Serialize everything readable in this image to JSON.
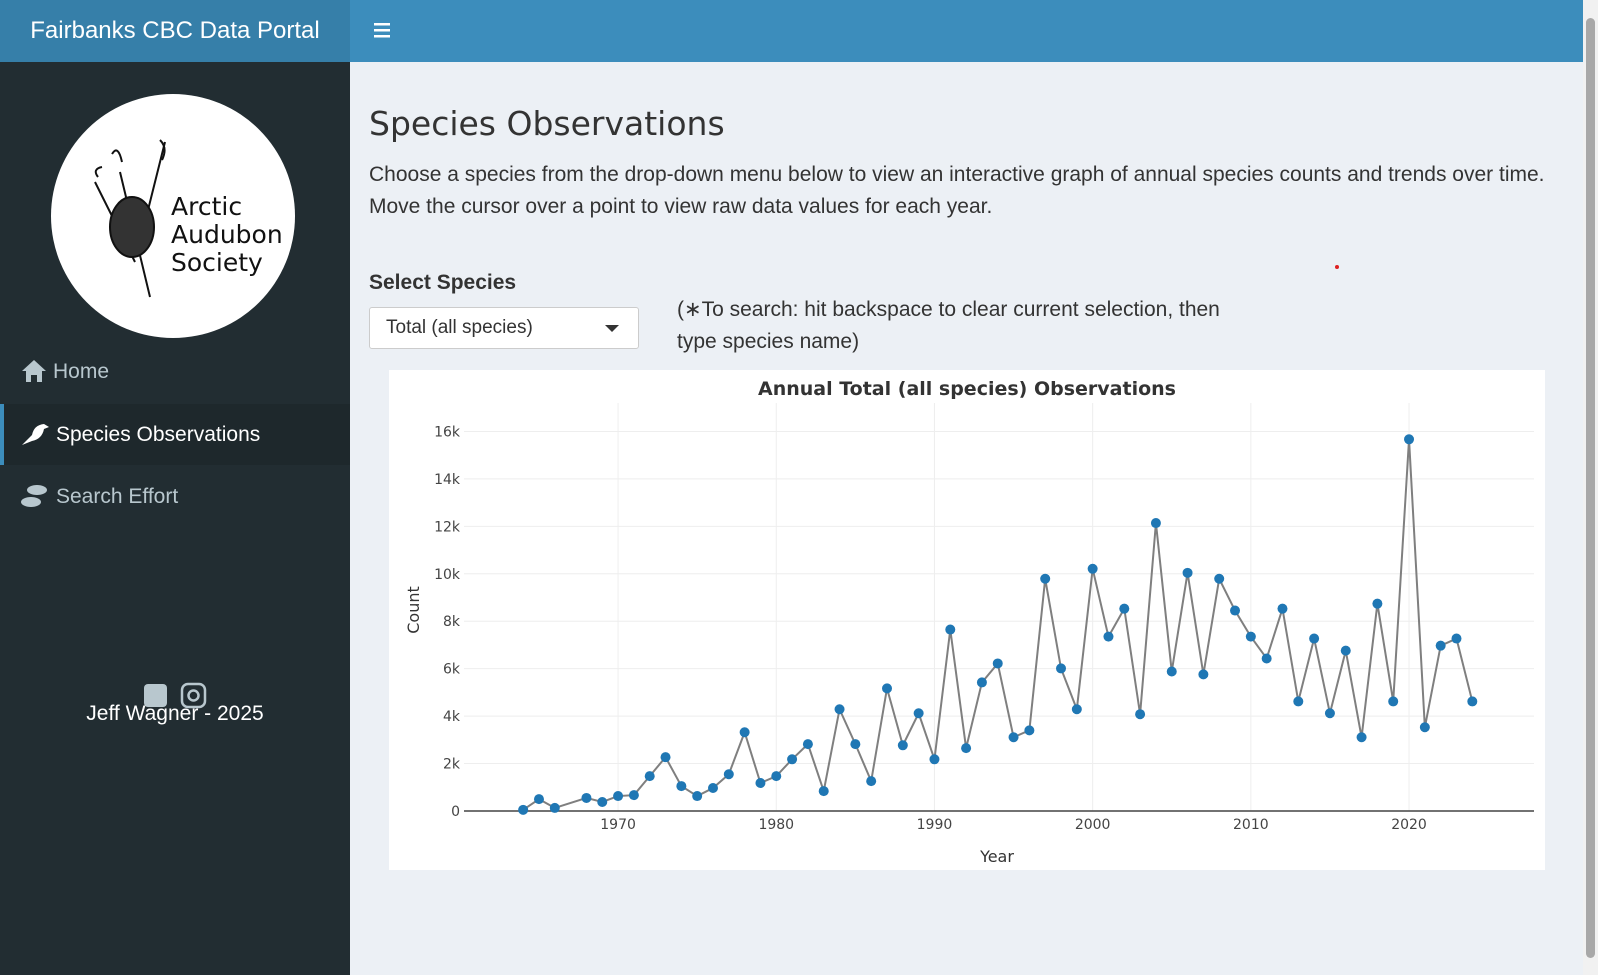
{
  "header": {
    "brand": "Fairbanks CBC Data Portal"
  },
  "sidebar": {
    "logo_text": [
      "Arctic",
      "Audubon",
      "Society"
    ],
    "nav": [
      "Home",
      "Species Observations",
      "Search Effort"
    ],
    "footer": "Jeff Wagner - 2025"
  },
  "main": {
    "title": "Species Observations",
    "description": "Choose a species from the drop-down menu below to view an interactive graph of annual species counts and trends over time. Move the cursor over a point to view raw data values for each year.",
    "select_label": "Select Species",
    "select_value": "Total (all species)",
    "search_hint": "(∗To search: hit backspace to clear current selection, then type species name)"
  },
  "chart_data": {
    "type": "line",
    "title": "Annual Total (all species) Observations",
    "x_label": "Year",
    "y_label": "Count",
    "x": [
      1964,
      1965,
      1966,
      1968,
      1969,
      1970,
      1971,
      1972,
      1973,
      1974,
      1975,
      1976,
      1977,
      1978,
      1979,
      1980,
      1981,
      1982,
      1983,
      1984,
      1985,
      1986,
      1987,
      1988,
      1989,
      1990,
      1991,
      1992,
      1993,
      1994,
      1995,
      1996,
      1997,
      1998,
      1999,
      2000,
      2001,
      2002,
      2003,
      2004,
      2005,
      2006,
      2007,
      2008,
      2009,
      2010,
      2011,
      2012,
      2013,
      2014,
      2015,
      2016,
      2017,
      2018,
      2019,
      2020,
      2021,
      2022,
      2023,
      2024
    ],
    "values": [
      50,
      500,
      130,
      550,
      380,
      630,
      670,
      1470,
      2270,
      1050,
      630,
      970,
      1550,
      3320,
      1180,
      1470,
      2180,
      2820,
      840,
      4290,
      2820,
      1260,
      5170,
      2770,
      4120,
      2180,
      7650,
      2650,
      5420,
      6220,
      3110,
      3400,
      9790,
      6010,
      4290,
      10210,
      7350,
      8530,
      4080,
      12140,
      5880,
      10040,
      5760,
      9790,
      8450,
      7350,
      6430,
      8530,
      4620,
      7270,
      4120,
      6760,
      3110,
      8740,
      4620,
      15670,
      3530,
      6970,
      7270,
      4620
    ],
    "color": "#1f77b4",
    "line_color": "#7f7f7f",
    "xlim": [
      1960.26,
      2027.9
    ],
    "ylim": [
      0,
      17200
    ],
    "xticks": [
      1970,
      1980,
      1990,
      2000,
      2010,
      2020
    ],
    "yticks": [
      0,
      {
        "value": 2000,
        "label": "2k"
      },
      {
        "value": 4000,
        "label": "4k"
      },
      {
        "value": 6000,
        "label": "6k"
      },
      {
        "value": 8000,
        "label": "8k"
      },
      {
        "value": 10000,
        "label": "10k"
      },
      {
        "value": 12000,
        "label": "12k"
      },
      {
        "value": 14000,
        "label": "14k"
      },
      {
        "value": 16000,
        "label": "16k"
      }
    ],
    "grid": true
  }
}
